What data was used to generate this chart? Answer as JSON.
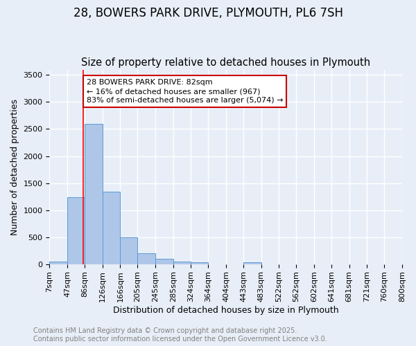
{
  "title": "28, BOWERS PARK DRIVE, PLYMOUTH, PL6 7SH",
  "subtitle": "Size of property relative to detached houses in Plymouth",
  "xlabel": "Distribution of detached houses by size in Plymouth",
  "ylabel": "Number of detached properties",
  "bin_edges": [
    7,
    47,
    86,
    126,
    166,
    205,
    245,
    285,
    324,
    364,
    404,
    443,
    483,
    522,
    562,
    602,
    641,
    681,
    721,
    760,
    800
  ],
  "bar_heights": [
    50,
    1240,
    2600,
    1340,
    500,
    195,
    100,
    50,
    35,
    0,
    0,
    30,
    0,
    0,
    0,
    0,
    0,
    0,
    0,
    0
  ],
  "bar_color": "#aec6e8",
  "bar_edgecolor": "#5b9bd5",
  "background_color": "#e8eef7",
  "grid_color": "#ffffff",
  "redline_x": 82,
  "annotation_text": "28 BOWERS PARK DRIVE: 82sqm\n← 16% of detached houses are smaller (967)\n83% of semi-detached houses are larger (5,074) →",
  "annotation_box_color": "#ffffff",
  "annotation_border_color": "#cc0000",
  "ylim": [
    0,
    3600
  ],
  "yticks": [
    0,
    500,
    1000,
    1500,
    2000,
    2500,
    3000,
    3500
  ],
  "footer_line1": "Contains HM Land Registry data © Crown copyright and database right 2025.",
  "footer_line2": "Contains public sector information licensed under the Open Government Licence v3.0.",
  "title_fontsize": 12,
  "subtitle_fontsize": 10.5,
  "axis_label_fontsize": 9,
  "tick_fontsize": 8,
  "annotation_fontsize": 8,
  "footer_fontsize": 7
}
